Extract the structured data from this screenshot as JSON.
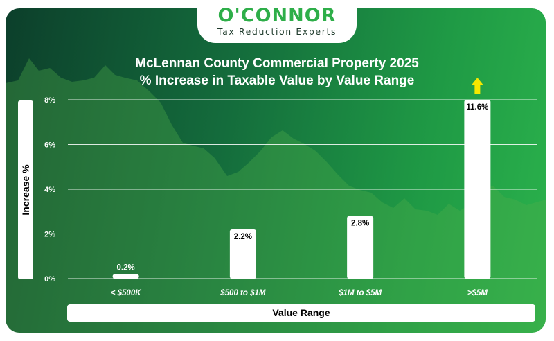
{
  "brand": {
    "name": "O'CONNOR",
    "tagline": "Tax Reduction Experts"
  },
  "chart_data": {
    "type": "bar",
    "title": "McLennan County Commercial Property 2025",
    "subtitle": "% Increase in Taxable Value by Value Range",
    "xlabel": "Value Range",
    "ylabel": "Increase %",
    "ylim": [
      0,
      8
    ],
    "yticks": [
      "0%",
      "2%",
      "4%",
      "6%",
      "8%"
    ],
    "categories": [
      "< $500K",
      "$500 to $1M",
      "$1M to $5M",
      ">$5M"
    ],
    "values": [
      0.2,
      2.2,
      2.8,
      11.6
    ],
    "data_labels": [
      "0.2%",
      "2.2%",
      "2.8%",
      "11.6%"
    ],
    "clipped_indicator": ">$5M",
    "grid": true,
    "colors": {
      "bar": "#ffffff",
      "grid": "#ffffff",
      "arrow": "#f5e800",
      "background_dark": "#0c3f2b",
      "background_light": "#2bb24c"
    }
  }
}
